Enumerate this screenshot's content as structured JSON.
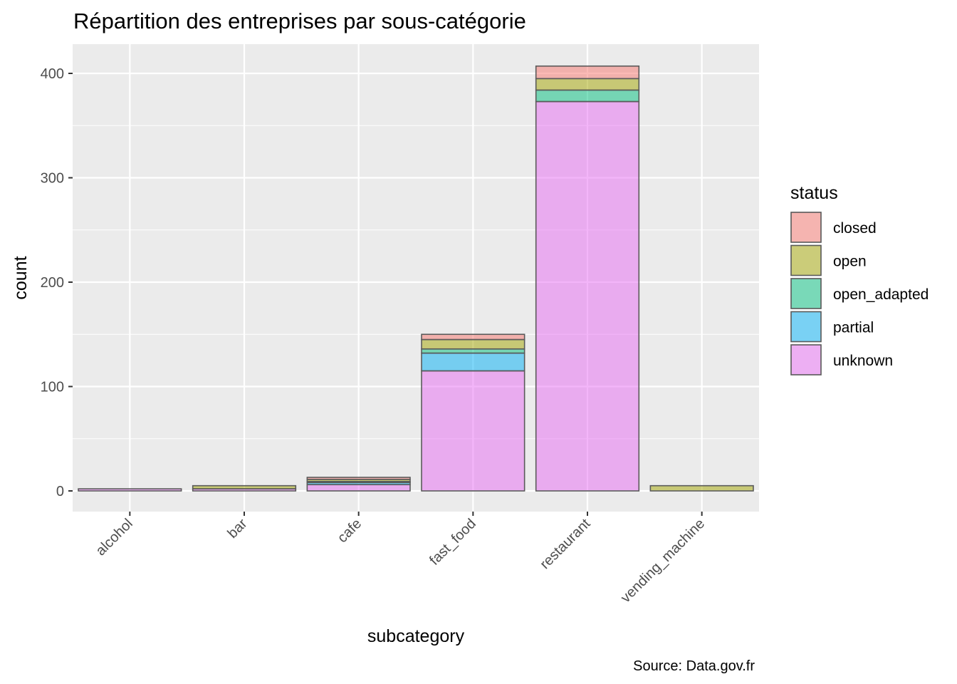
{
  "chart_data": {
    "type": "bar",
    "stacked": true,
    "title": "Répartition des entreprises par sous-catégorie",
    "xlabel": "subcategory",
    "ylabel": "count",
    "caption": "Source: Data.gov.fr",
    "ylim": [
      -20,
      428
    ],
    "yticks": [
      0,
      100,
      200,
      300,
      400
    ],
    "grid": true,
    "legend": {
      "title": "status",
      "position": "right"
    },
    "categories": [
      "alcohol",
      "bar",
      "cafe",
      "fast_food",
      "restaurant",
      "vending_machine"
    ],
    "series": [
      {
        "name": "unknown",
        "color": "#E76BF3",
        "values": [
          2,
          2,
          6,
          115,
          373,
          0
        ]
      },
      {
        "name": "partial",
        "color": "#00B0F6",
        "values": [
          0,
          0,
          2,
          17,
          0,
          0
        ]
      },
      {
        "name": "open_adapted",
        "color": "#00BF7D",
        "values": [
          0,
          0,
          1,
          4,
          11,
          0
        ]
      },
      {
        "name": "open",
        "color": "#A3A500",
        "values": [
          0,
          3,
          2,
          9,
          11,
          5
        ]
      },
      {
        "name": "closed",
        "color": "#F8766D",
        "values": [
          0,
          0,
          2,
          5,
          12,
          0
        ]
      }
    ],
    "legend_order": [
      "closed",
      "open",
      "open_adapted",
      "partial",
      "unknown"
    ]
  }
}
